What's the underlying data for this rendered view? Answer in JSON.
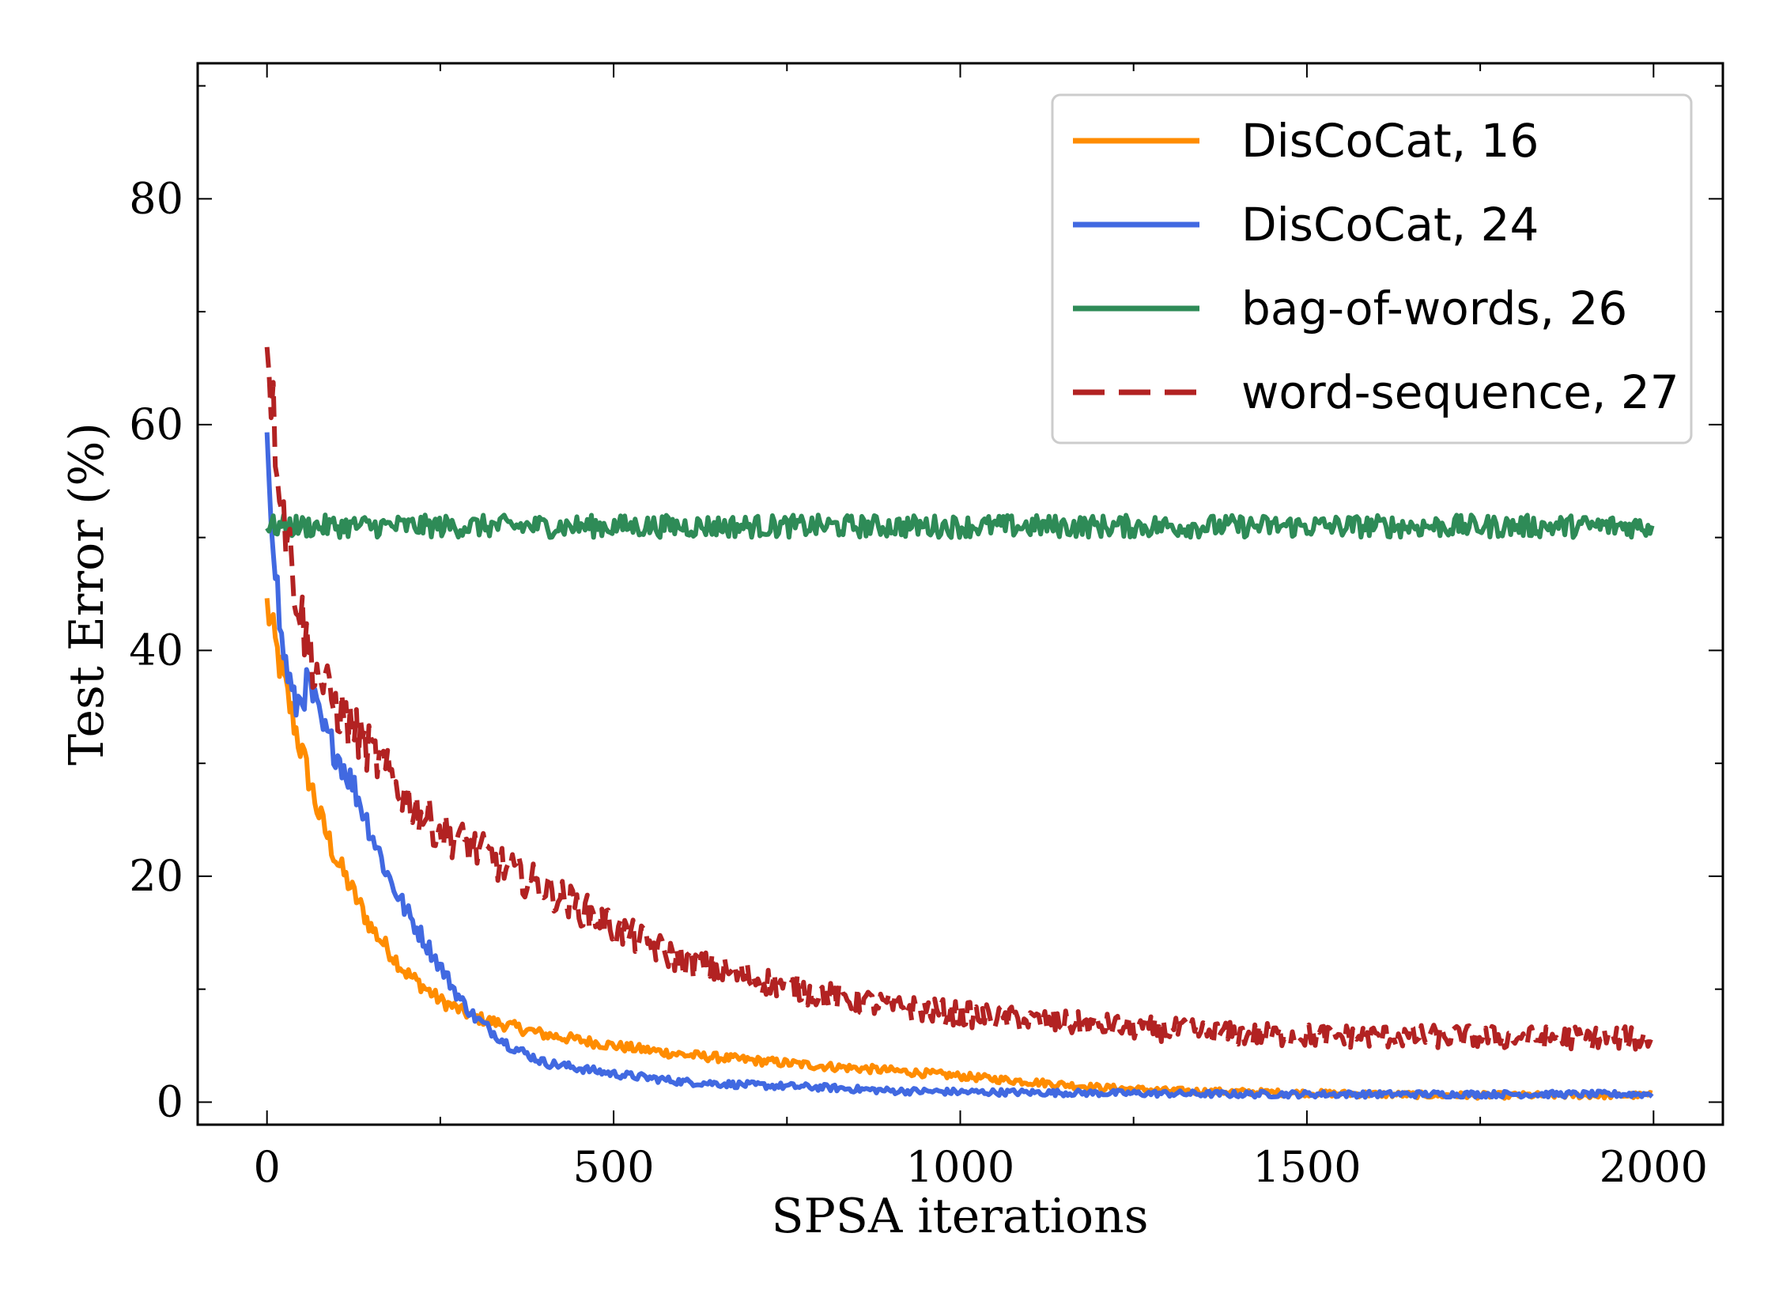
{
  "chart_data": {
    "type": "line",
    "title": "",
    "xlabel": "SPSA iterations",
    "ylabel": "Test Error (%)",
    "xlim": [
      -100,
      2100
    ],
    "ylim": [
      -2,
      92
    ],
    "xticks": [
      0,
      500,
      1000,
      1500,
      2000
    ],
    "yticks": [
      0,
      20,
      40,
      60,
      80
    ],
    "xtick_labels": [
      "0",
      "500",
      "1000",
      "1500",
      "2000"
    ],
    "ytick_labels": [
      "0",
      "20",
      "40",
      "60",
      "80"
    ],
    "grid": false,
    "legend_position": "top-right",
    "series": [
      {
        "name": "DisCoCat, 16",
        "color": "#ff8c00",
        "dash": "solid",
        "x": [
          0,
          10,
          25,
          50,
          75,
          100,
          150,
          200,
          250,
          300,
          400,
          500,
          600,
          700,
          800,
          900,
          1000,
          1100,
          1200,
          1300,
          1400,
          1500,
          1600,
          1700,
          1800,
          1900,
          2000
        ],
        "y": [
          44,
          41,
          37,
          31,
          25.5,
          21.5,
          15.5,
          11.5,
          9,
          7.5,
          6,
          5,
          4.2,
          3.7,
          3.2,
          2.8,
          2.3,
          1.8,
          1.3,
          1.0,
          0.9,
          0.8,
          0.7,
          0.6,
          0.6,
          0.6,
          0.6
        ]
      },
      {
        "name": "DisCoCat, 24",
        "color": "#4169e1",
        "dash": "solid",
        "x": [
          0,
          5,
          20,
          40,
          60,
          80,
          100,
          125,
          150,
          175,
          200,
          250,
          280,
          300,
          350,
          400,
          500,
          600,
          700,
          800,
          900,
          1000,
          1200,
          1400,
          1600,
          1800,
          2000
        ],
        "y": [
          60,
          54,
          41,
          35,
          37,
          33,
          31,
          28,
          24,
          20,
          17,
          12,
          9,
          7.5,
          5,
          3.5,
          2.5,
          1.8,
          1.5,
          1.3,
          1.0,
          0.9,
          0.8,
          0.7,
          0.7,
          0.7,
          0.7
        ]
      },
      {
        "name": "bag-of-words, 26",
        "color": "#2e8b57",
        "dash": "solid",
        "x": [
          0,
          250,
          500,
          750,
          1000,
          1250,
          1500,
          1750,
          2000
        ],
        "y": [
          51,
          51,
          51,
          51,
          51,
          51,
          51,
          51,
          51
        ]
      },
      {
        "name": "word-sequence, 27",
        "color": "#b22222",
        "dash": "dashed",
        "x": [
          0,
          10,
          25,
          40,
          60,
          80,
          100,
          150,
          200,
          250,
          300,
          350,
          400,
          500,
          600,
          700,
          800,
          900,
          1000,
          1100,
          1200,
          1300,
          1400,
          1500,
          1600,
          1700,
          1800,
          1900,
          2000
        ],
        "y": [
          69,
          60,
          52,
          46,
          40,
          37,
          35,
          31,
          27,
          24,
          22.5,
          20.5,
          19,
          15.5,
          12.5,
          11,
          9.5,
          8.5,
          7.8,
          7.2,
          6.8,
          6.4,
          6.0,
          5.9,
          5.8,
          5.8,
          5.7,
          5.7,
          5.6
        ]
      }
    ]
  }
}
